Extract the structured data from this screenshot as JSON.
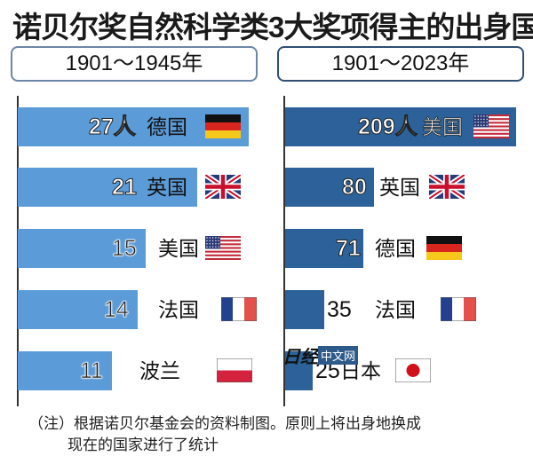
{
  "title": "诺贝尔奖自然科学类3大奖项得主的出身国",
  "watermark": {
    "logo": "日经",
    "tag": "中文网"
  },
  "footnote": [
    "（注）根据诺贝尔基金会的资料制图。原则上将出身地换成",
    "现在的国家进行了统计"
  ],
  "colors": {
    "left_bar": "#5b9bd8",
    "right_bar": "#2c6299"
  },
  "chart_data": [
    {
      "type": "bar",
      "orientation": "horizontal",
      "title": "1901～1945年",
      "unit": "人",
      "categories": [
        "德国",
        "英国",
        "美国",
        "法国",
        "波兰"
      ],
      "labels": [
        "27人",
        "21",
        "15",
        "14",
        "11"
      ],
      "values": [
        27,
        21,
        15,
        14,
        11
      ],
      "flags": [
        "flag-germany",
        "flag-uk",
        "flag-usa",
        "flag-france",
        "flag-poland"
      ]
    },
    {
      "type": "bar",
      "orientation": "horizontal",
      "title": "1901～2023年",
      "unit": "人",
      "categories": [
        "美国",
        "英国",
        "德国",
        "法国",
        "日本"
      ],
      "labels": [
        "209人",
        "80",
        "71",
        "35",
        "25"
      ],
      "values": [
        209,
        80,
        71,
        35,
        25
      ],
      "flags": [
        "flag-usa",
        "flag-uk",
        "flag-germany",
        "flag-france",
        "flag-japan"
      ]
    }
  ]
}
